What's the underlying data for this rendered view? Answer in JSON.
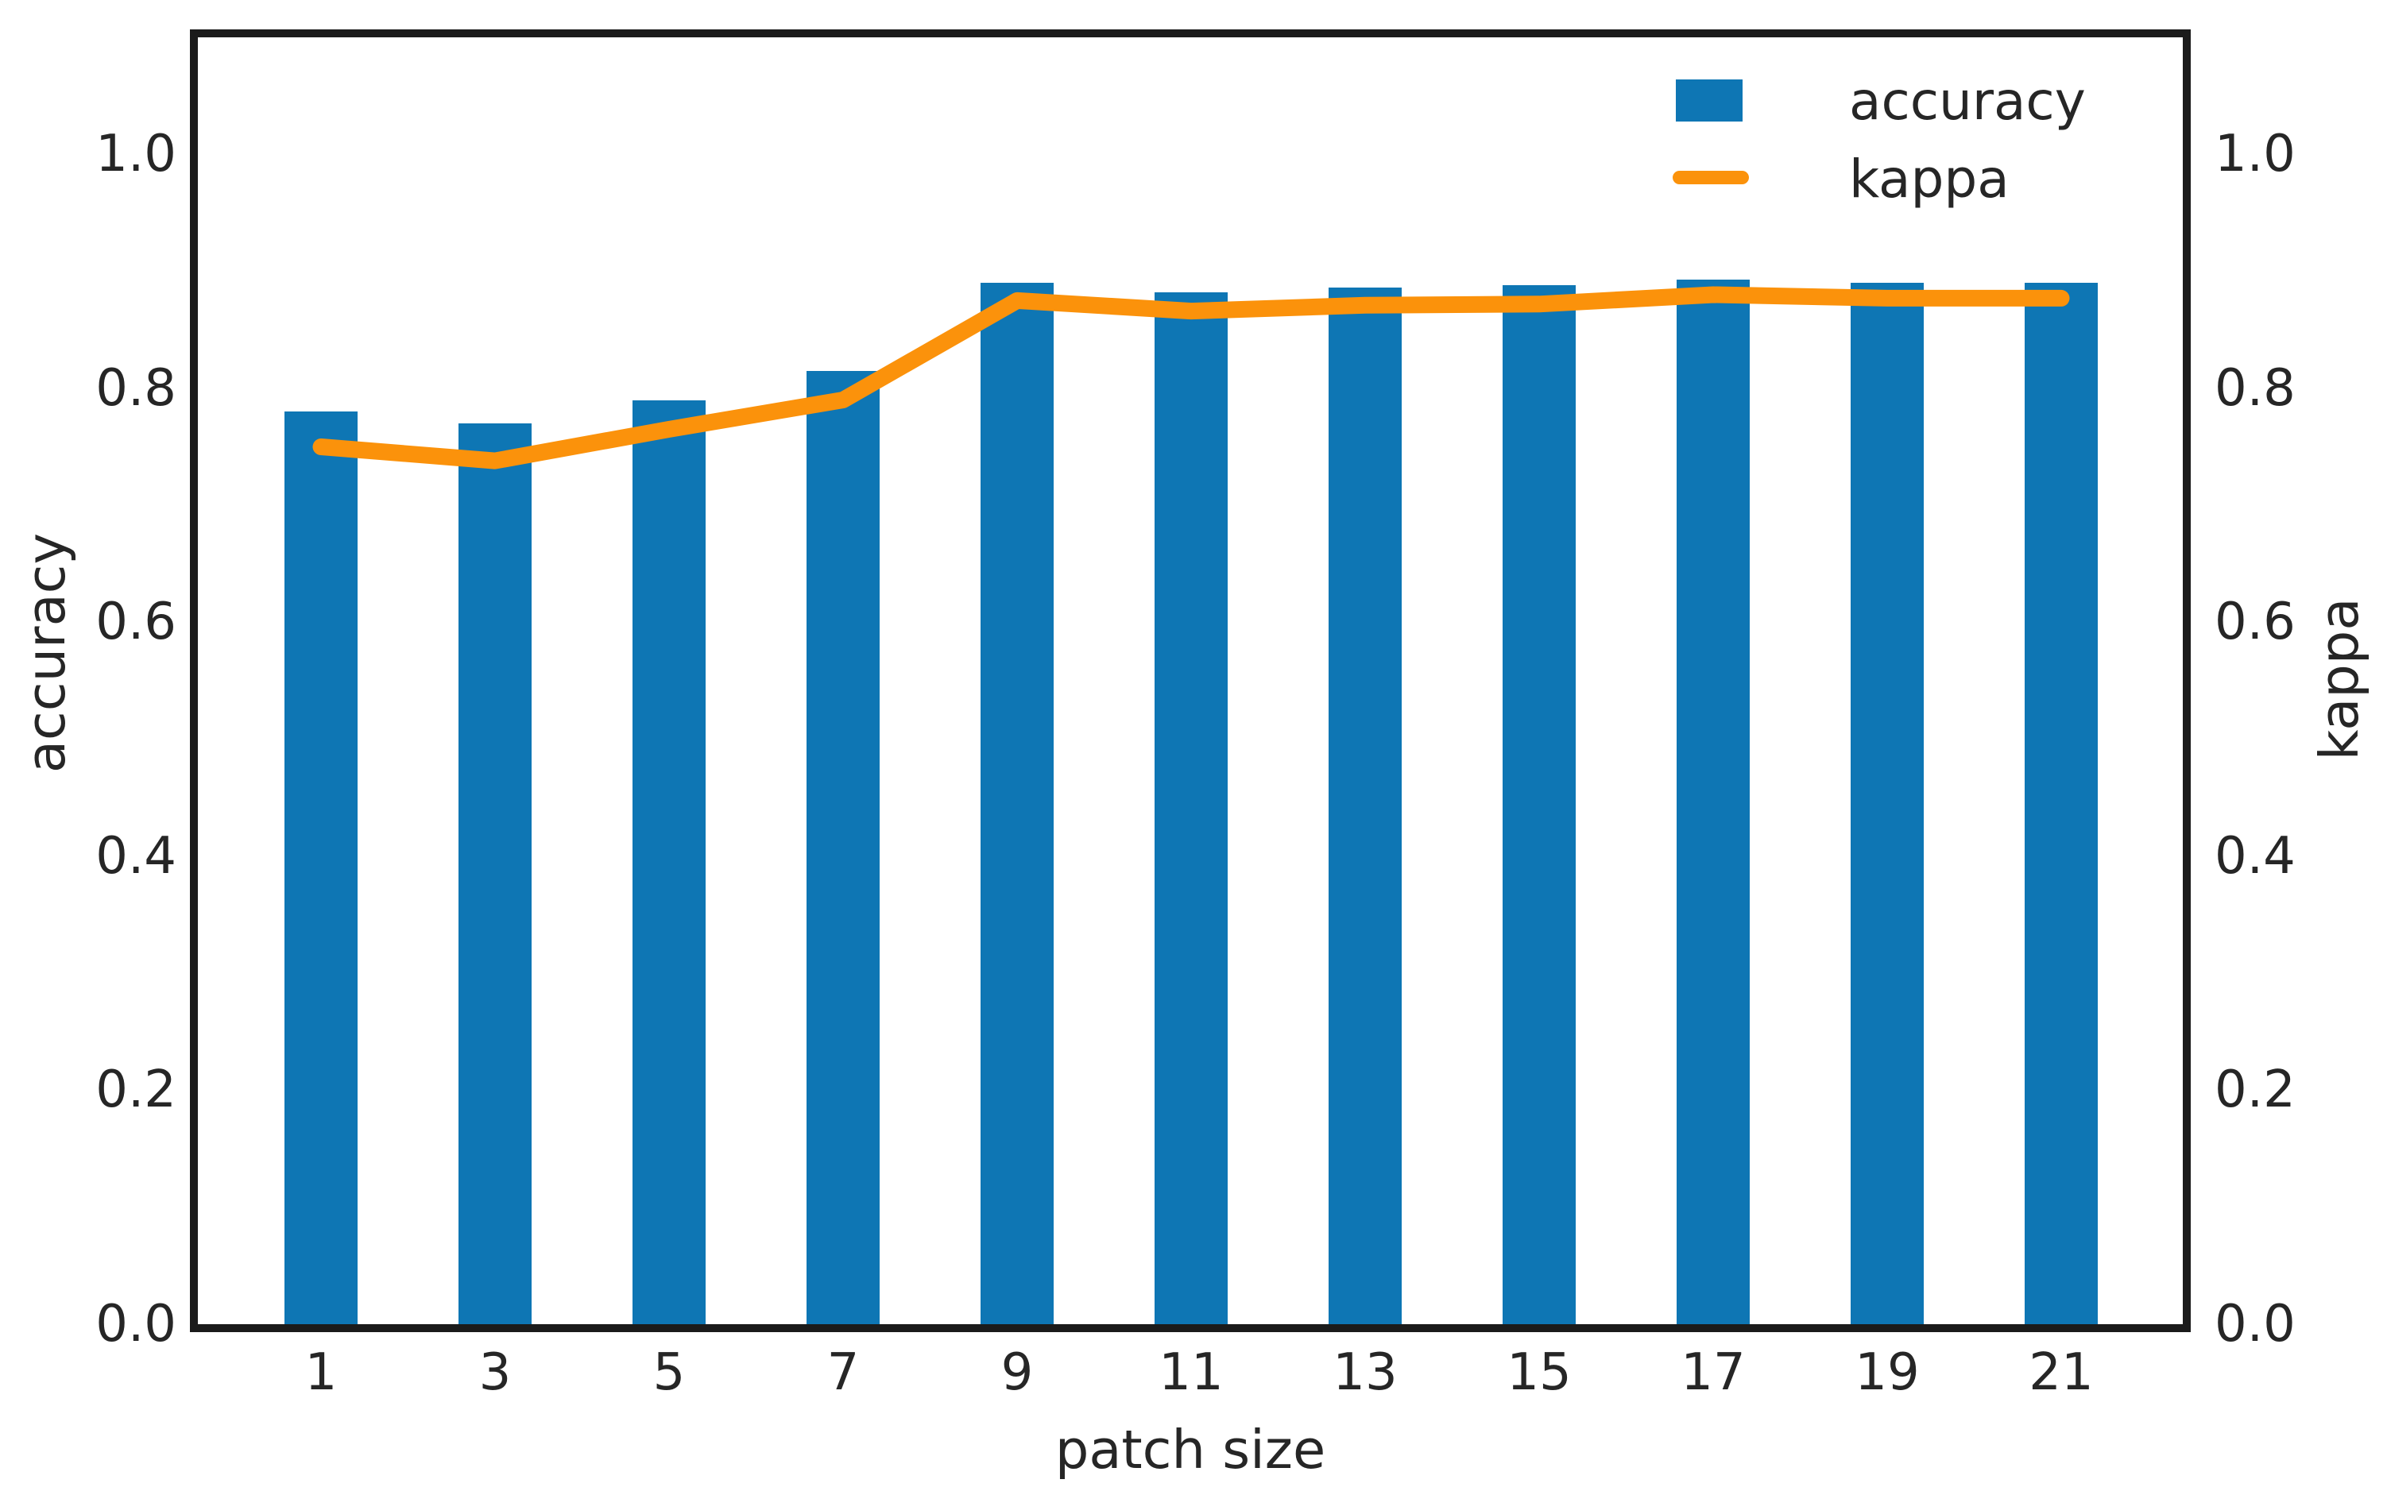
{
  "chart_data": {
    "type": "bar",
    "title": "",
    "categories": [
      1,
      3,
      5,
      7,
      9,
      11,
      13,
      15,
      17,
      19,
      21
    ],
    "series": [
      {
        "name": "accuracy",
        "type": "bar",
        "axis": "left",
        "color": "#0e76b4",
        "values": [
          0.78,
          0.77,
          0.79,
          0.815,
          0.89,
          0.882,
          0.886,
          0.888,
          0.893,
          0.89,
          0.89
        ]
      },
      {
        "name": "kappa",
        "type": "line",
        "axis": "right",
        "color": "#fb920b",
        "values": [
          0.75,
          0.738,
          0.765,
          0.79,
          0.875,
          0.866,
          0.871,
          0.872,
          0.88,
          0.877,
          0.877
        ]
      }
    ],
    "xlabel": "patch size",
    "ylabel_left": "accuracy",
    "ylabel_right": "kappa",
    "ylim": [
      0,
      1.1
    ],
    "yticks": [
      0.0,
      0.2,
      0.4,
      0.6,
      0.8,
      1.0
    ],
    "grid": false,
    "legend_position": "upper right",
    "legend_items": [
      "accuracy",
      "kappa"
    ]
  },
  "style": {
    "bar_color": "#0e76b4",
    "line_color": "#fb920b",
    "spine_color": "#1b1b1b",
    "text_color": "#262626",
    "background": "#ffffff"
  }
}
